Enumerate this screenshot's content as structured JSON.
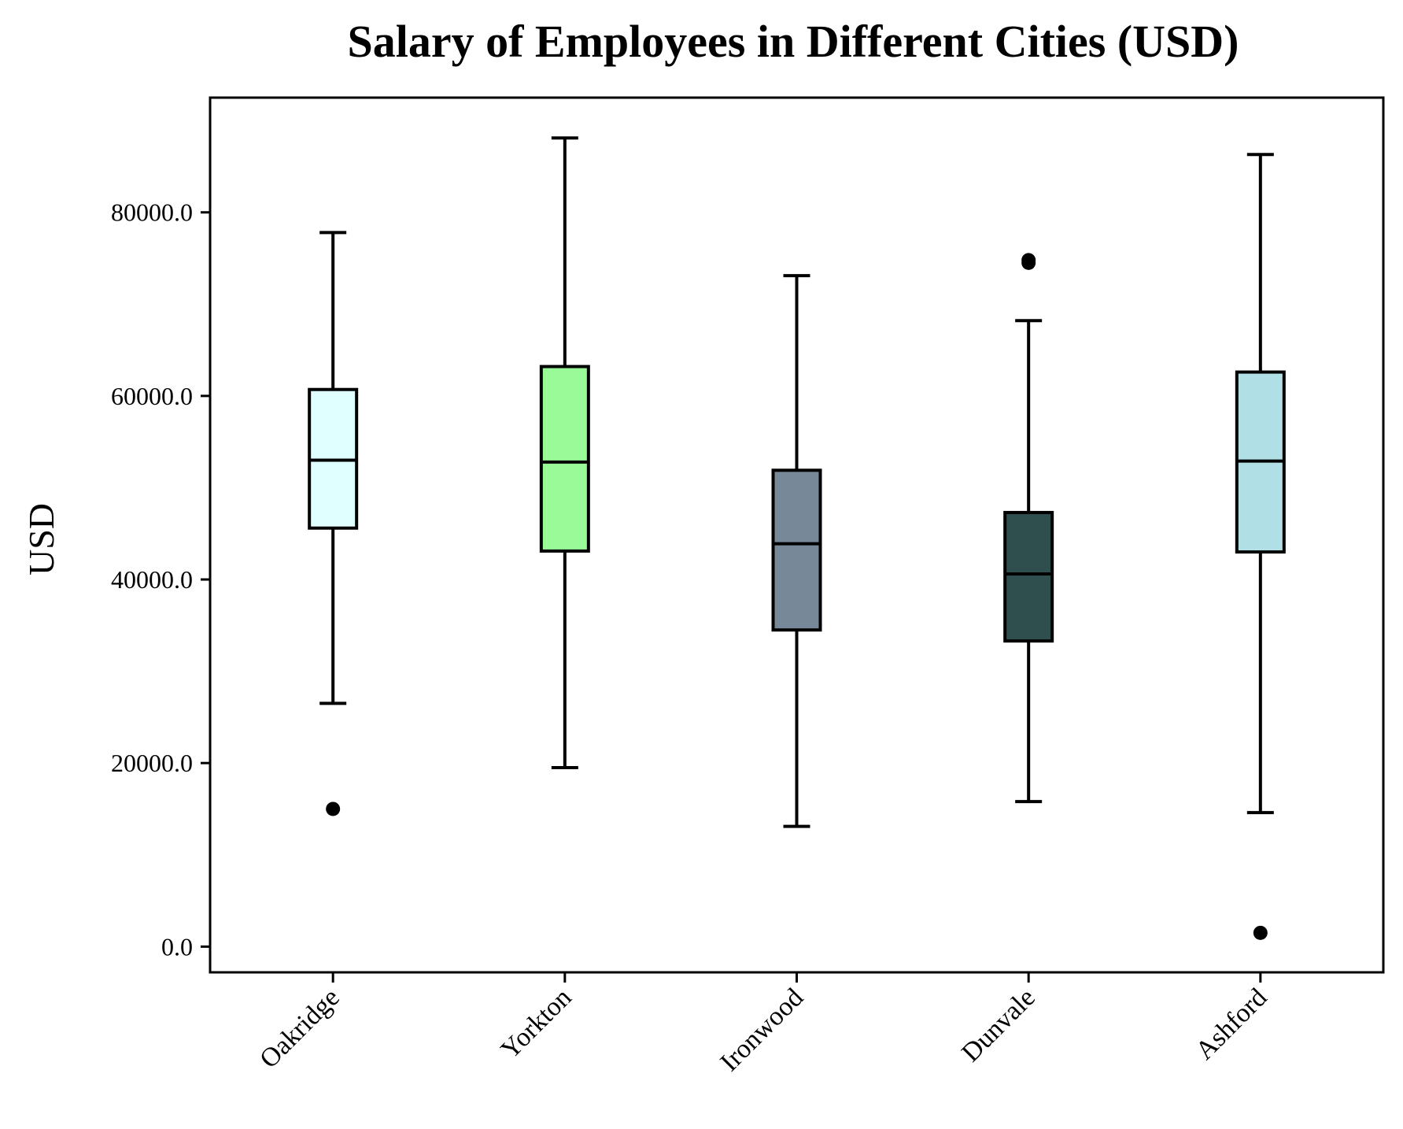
{
  "chart_data": {
    "type": "box",
    "title": "Salary of Employees in Different Cities (USD)",
    "xlabel": "",
    "ylabel": "USD",
    "ylim": [
      -2800,
      92500
    ],
    "yticks": [
      0,
      20000,
      40000,
      60000,
      80000
    ],
    "ytick_labels": [
      "0.0",
      "20000.0",
      "40000.0",
      "60000.0",
      "80000.0"
    ],
    "grid": false,
    "categories": [
      "Oakridge",
      "Yorkton",
      "Ironwood",
      "Dunvale",
      "Ashford"
    ],
    "colors": [
      "#e0ffff",
      "#98fb98",
      "#778899",
      "#2f4f4f",
      "#b0dfe5"
    ],
    "series": [
      {
        "whisker_low": 26500,
        "q1": 45600,
        "median": 53000,
        "q3": 60700,
        "whisker_high": 77800,
        "outliers": [
          15000
        ]
      },
      {
        "whisker_low": 19500,
        "q1": 43100,
        "median": 52800,
        "q3": 63200,
        "whisker_high": 88100,
        "outliers": []
      },
      {
        "whisker_low": 13100,
        "q1": 34500,
        "median": 43900,
        "q3": 51900,
        "whisker_high": 73100,
        "outliers": []
      },
      {
        "whisker_low": 15800,
        "q1": 33300,
        "median": 40600,
        "q3": 47300,
        "whisker_high": 68200,
        "outliers": [
          74500,
          74800
        ]
      },
      {
        "whisker_low": 14600,
        "q1": 43000,
        "median": 52900,
        "q3": 62600,
        "whisker_high": 86300,
        "outliers": [
          1500
        ]
      }
    ]
  }
}
